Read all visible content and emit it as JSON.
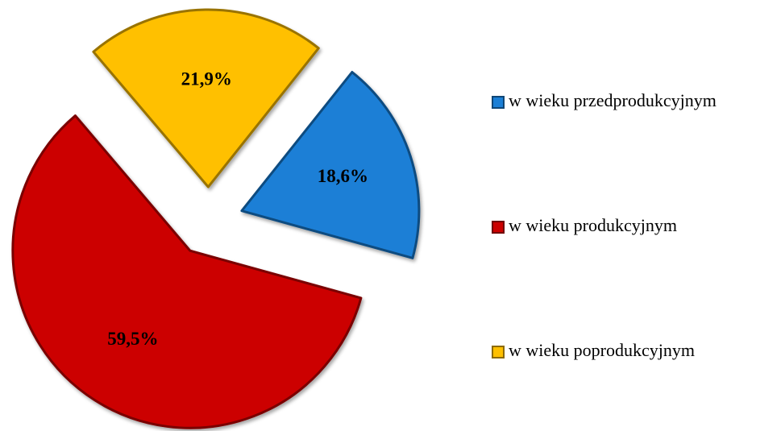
{
  "chart_data": {
    "type": "pie",
    "categories": [
      "w wieku przedprodukcyjnym",
      "w wieku produkcyjnym",
      "w wieku poprodukcyjnym"
    ],
    "values": [
      18.6,
      59.5,
      21.9
    ],
    "value_labels": [
      "18,6%",
      "59,5%",
      "21,9%"
    ],
    "colors": [
      "#1b7fd6",
      "#cc0000",
      "#ffc000"
    ],
    "legend": "right"
  }
}
